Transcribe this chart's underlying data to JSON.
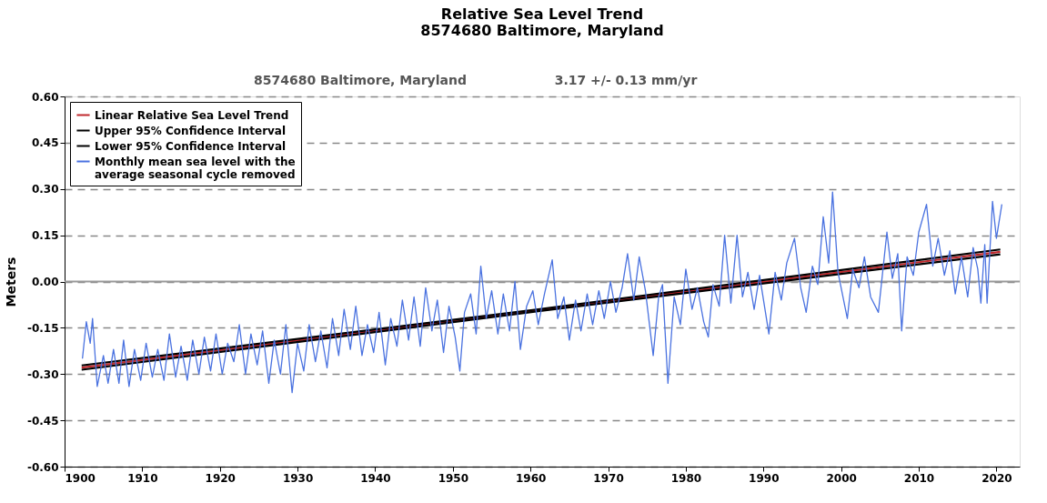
{
  "chart_data": {
    "type": "line",
    "title": "Relative Sea Level Trend\n8574680 Baltimore, Maryland",
    "subtitle": "8574680 Baltimore, Maryland",
    "annotations": [
      "3.17 +/-  0.13 mm/yr"
    ],
    "ylabel": "Meters",
    "xlim": [
      1900,
      2023
    ],
    "xticks": [
      1900,
      1910,
      1920,
      1930,
      1940,
      1950,
      1960,
      1970,
      1980,
      1990,
      2000,
      2010,
      2020
    ],
    "ylim": [
      -0.6,
      0.6
    ],
    "yticks": [
      {
        "value": 0.6,
        "label": "0.60"
      },
      {
        "value": 0.45,
        "label": "0.45"
      },
      {
        "value": 0.3,
        "label": "0.30"
      },
      {
        "value": 0.15,
        "label": "0.15"
      },
      {
        "value": 0,
        "label": "0.00"
      },
      {
        "value": -0.15,
        "label": "-0.15"
      },
      {
        "value": -0.3,
        "label": "-0.30"
      },
      {
        "value": -0.45,
        "label": "-0.45"
      },
      {
        "value": -0.6,
        "label": "-0.60"
      }
    ],
    "grid": "y",
    "legend": "top left",
    "line_style": "solid",
    "marker": "none",
    "ref_lines": [
      {
        "axis": "y",
        "value": 0,
        "color": "#999999",
        "line_style": "solid"
      }
    ],
    "series": [
      {
        "name": "Linear Relative Sea Level Trend",
        "color": "#c0282d",
        "x": [
          1902.2,
          1961,
          2020.5
        ],
        "values": [
          -0.279,
          -0.093,
          0.096
        ]
      },
      {
        "name": "Upper 95% Confidence Interval",
        "color": "#000000",
        "x": [
          1902.2,
          1961,
          2020.5
        ],
        "values": [
          -0.272,
          -0.09,
          0.104
        ]
      },
      {
        "name": "Lower 95% Confidence Interval",
        "color": "#000000",
        "x": [
          1902.2,
          1961,
          2020.5
        ],
        "values": [
          -0.286,
          -0.096,
          0.088
        ]
      },
      {
        "name": "Monthly mean sea level with the\naverage seasonal cycle removed",
        "color": "#4a72e0",
        "x": [
          1902.3,
          1902.8,
          1903.3,
          1903.6,
          1904.2,
          1905.0,
          1905.6,
          1906.3,
          1907.0,
          1907.6,
          1908.3,
          1909.0,
          1909.8,
          1910.5,
          1911.3,
          1912.0,
          1912.8,
          1913.5,
          1914.3,
          1915.0,
          1915.8,
          1916.5,
          1917.3,
          1918.0,
          1918.8,
          1919.5,
          1920.3,
          1921.0,
          1921.8,
          1922.5,
          1923.3,
          1924.0,
          1924.8,
          1925.5,
          1926.3,
          1927.0,
          1927.8,
          1928.5,
          1929.3,
          1930.0,
          1930.8,
          1931.5,
          1932.3,
          1933.0,
          1933.8,
          1934.5,
          1935.3,
          1936.0,
          1936.8,
          1937.5,
          1938.3,
          1939.0,
          1939.8,
          1940.5,
          1941.3,
          1942.0,
          1942.8,
          1943.5,
          1944.3,
          1945.0,
          1945.8,
          1946.5,
          1947.3,
          1948.0,
          1948.8,
          1949.5,
          1950.3,
          1950.9,
          1951.5,
          1952.3,
          1953.0,
          1953.6,
          1954.3,
          1955.0,
          1955.8,
          1956.5,
          1957.3,
          1958.0,
          1958.7,
          1959.5,
          1960.3,
          1961.0,
          1961.8,
          1962.8,
          1963.5,
          1964.3,
          1965.0,
          1965.8,
          1966.5,
          1967.3,
          1968.0,
          1968.8,
          1969.5,
          1970.3,
          1971.0,
          1971.8,
          1972.5,
          1973.3,
          1974.0,
          1974.8,
          1975.8,
          1976.5,
          1977.0,
          1977.7,
          1978.5,
          1979.3,
          1980.0,
          1980.8,
          1981.5,
          1982.3,
          1982.9,
          1983.5,
          1984.3,
          1985.0,
          1985.8,
          1986.6,
          1987.3,
          1988.0,
          1988.8,
          1989.5,
          1990.7,
          1991.5,
          1992.3,
          1993.0,
          1994.0,
          1994.8,
          1995.5,
          1996.3,
          1997.0,
          1997.7,
          1998.4,
          1998.9,
          1999.6,
          2000.8,
          2001.5,
          2002.3,
          2003.0,
          2003.8,
          2004.8,
          2005.9,
          2006.6,
          2007.3,
          2007.8,
          2008.5,
          2009.3,
          2010.0,
          2011.0,
          2011.8,
          2012.5,
          2013.3,
          2014.0,
          2014.7,
          2015.5,
          2016.3,
          2017.0,
          2017.6,
          2018.0,
          2018.5,
          2018.8,
          2019.5,
          2020.0,
          2020.7
        ],
        "values": [
          -0.25,
          -0.13,
          -0.2,
          -0.12,
          -0.34,
          -0.24,
          -0.33,
          -0.22,
          -0.33,
          -0.19,
          -0.34,
          -0.22,
          -0.32,
          -0.2,
          -0.31,
          -0.22,
          -0.32,
          -0.17,
          -0.31,
          -0.21,
          -0.32,
          -0.19,
          -0.3,
          -0.18,
          -0.29,
          -0.17,
          -0.3,
          -0.2,
          -0.26,
          -0.14,
          -0.3,
          -0.17,
          -0.27,
          -0.16,
          -0.33,
          -0.19,
          -0.3,
          -0.14,
          -0.36,
          -0.2,
          -0.29,
          -0.14,
          -0.26,
          -0.16,
          -0.28,
          -0.12,
          -0.24,
          -0.09,
          -0.22,
          -0.08,
          -0.24,
          -0.14,
          -0.23,
          -0.1,
          -0.27,
          -0.12,
          -0.21,
          -0.06,
          -0.19,
          -0.05,
          -0.21,
          -0.02,
          -0.16,
          -0.06,
          -0.23,
          -0.08,
          -0.18,
          -0.29,
          -0.1,
          -0.04,
          -0.17,
          0.05,
          -0.12,
          -0.03,
          -0.17,
          -0.04,
          -0.16,
          0.0,
          -0.22,
          -0.08,
          -0.03,
          -0.14,
          -0.04,
          0.07,
          -0.12,
          -0.05,
          -0.19,
          -0.06,
          -0.16,
          -0.04,
          -0.14,
          -0.03,
          -0.12,
          0.0,
          -0.1,
          -0.02,
          0.09,
          -0.06,
          0.08,
          -0.03,
          -0.24,
          -0.05,
          -0.01,
          -0.33,
          -0.05,
          -0.14,
          0.04,
          -0.09,
          -0.02,
          -0.13,
          -0.18,
          -0.01,
          -0.08,
          0.15,
          -0.07,
          0.15,
          -0.05,
          0.03,
          -0.09,
          0.02,
          -0.17,
          0.03,
          -0.06,
          0.06,
          0.14,
          -0.02,
          -0.1,
          0.05,
          -0.01,
          0.21,
          0.06,
          0.29,
          0.03,
          -0.12,
          0.04,
          -0.02,
          0.08,
          -0.05,
          -0.1,
          0.16,
          0.01,
          0.09,
          -0.16,
          0.08,
          0.02,
          0.16,
          0.25,
          0.05,
          0.14,
          0.02,
          0.1,
          -0.04,
          0.08,
          -0.05,
          0.11,
          0.04,
          -0.07,
          0.12,
          -0.07,
          0.26,
          0.14,
          0.25
        ]
      }
    ]
  }
}
